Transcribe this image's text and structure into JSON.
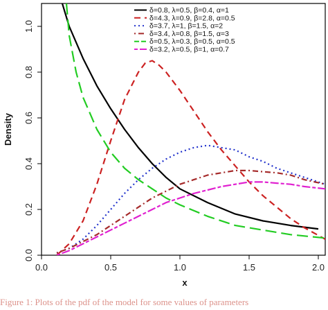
{
  "chart_data": {
    "type": "line",
    "xlabel": "x",
    "ylabel": "Density",
    "xlim": [
      0.0,
      2.05
    ],
    "ylim": [
      0.0,
      1.1
    ],
    "xticks": [
      "0.0",
      "0.5",
      "1.0",
      "1.5",
      "2.0"
    ],
    "yticks": [
      "0.0",
      "0.2",
      "0.4",
      "0.6",
      "0.8",
      "1.0"
    ],
    "legend_position": "top-right",
    "series": [
      {
        "name": "δ=0.8, λ=0.5, β=0.4, α=1",
        "color": "#000000",
        "style": "solid",
        "x": [
          0.15,
          0.2,
          0.25,
          0.3,
          0.4,
          0.5,
          0.6,
          0.7,
          0.8,
          0.9,
          1.0,
          1.2,
          1.4,
          1.6,
          1.8,
          2.0
        ],
        "y": [
          1.1,
          1.0,
          0.93,
          0.86,
          0.74,
          0.64,
          0.55,
          0.47,
          0.4,
          0.34,
          0.29,
          0.23,
          0.18,
          0.15,
          0.13,
          0.115
        ]
      },
      {
        "name": "δ=4.3, λ=0.9, β=2.8, α=0.5",
        "color": "#cc2222",
        "style": "dashed",
        "x": [
          0.11,
          0.2,
          0.3,
          0.4,
          0.5,
          0.6,
          0.7,
          0.75,
          0.8,
          0.85,
          0.9,
          1.0,
          1.1,
          1.2,
          1.3,
          1.4,
          1.5,
          1.6,
          1.7,
          1.8,
          1.9,
          2.05
        ],
        "y": [
          0.0,
          0.05,
          0.15,
          0.31,
          0.5,
          0.68,
          0.8,
          0.84,
          0.85,
          0.83,
          0.8,
          0.72,
          0.63,
          0.54,
          0.46,
          0.39,
          0.32,
          0.26,
          0.21,
          0.16,
          0.12,
          0.07
        ]
      },
      {
        "name": "δ=3.7, λ=1, β=1.5, α=2",
        "color": "#2233cc",
        "style": "dotted",
        "x": [
          0.11,
          0.2,
          0.3,
          0.4,
          0.5,
          0.6,
          0.7,
          0.8,
          0.9,
          1.0,
          1.1,
          1.2,
          1.3,
          1.4,
          1.5,
          1.6,
          1.7,
          1.8,
          1.9,
          2.05
        ],
        "y": [
          0.01,
          0.03,
          0.07,
          0.13,
          0.2,
          0.27,
          0.33,
          0.38,
          0.42,
          0.45,
          0.47,
          0.48,
          0.47,
          0.46,
          0.43,
          0.41,
          0.38,
          0.36,
          0.34,
          0.31
        ]
      },
      {
        "name": "δ=3.4, λ=0.8, β=1.5, α=3",
        "color": "#a52a2a",
        "style": "dotdash",
        "x": [
          0.11,
          0.2,
          0.3,
          0.4,
          0.5,
          0.6,
          0.7,
          0.8,
          0.9,
          1.0,
          1.1,
          1.2,
          1.3,
          1.4,
          1.5,
          1.6,
          1.7,
          1.8,
          1.9,
          2.05
        ],
        "y": [
          0.01,
          0.03,
          0.06,
          0.09,
          0.13,
          0.17,
          0.21,
          0.25,
          0.28,
          0.31,
          0.33,
          0.35,
          0.36,
          0.37,
          0.37,
          0.365,
          0.36,
          0.35,
          0.33,
          0.31
        ]
      },
      {
        "name": "δ=0.5, λ=0.3, β=0.5, α=0.5",
        "color": "#22cc22",
        "style": "longdash",
        "x": [
          0.18,
          0.2,
          0.25,
          0.3,
          0.4,
          0.5,
          0.6,
          0.7,
          0.8,
          0.9,
          1.0,
          1.2,
          1.4,
          1.6,
          1.8,
          2.05
        ],
        "y": [
          1.1,
          0.96,
          0.8,
          0.69,
          0.55,
          0.45,
          0.38,
          0.33,
          0.29,
          0.25,
          0.22,
          0.17,
          0.13,
          0.11,
          0.09,
          0.075
        ]
      },
      {
        "name": "δ=3.2, λ=0.5, β=1, α=0.7",
        "color": "#e020d0",
        "style": "twodash",
        "x": [
          0.11,
          0.2,
          0.3,
          0.4,
          0.5,
          0.6,
          0.7,
          0.8,
          0.9,
          1.0,
          1.1,
          1.2,
          1.3,
          1.4,
          1.5,
          1.6,
          1.7,
          1.8,
          1.9,
          2.05
        ],
        "y": [
          0.0,
          0.02,
          0.05,
          0.08,
          0.11,
          0.14,
          0.17,
          0.2,
          0.23,
          0.25,
          0.27,
          0.285,
          0.3,
          0.31,
          0.32,
          0.32,
          0.315,
          0.31,
          0.3,
          0.29
        ]
      }
    ]
  },
  "caption": {
    "text": "Figure 1: Plots of the pdf of the model for some values of parameters"
  }
}
